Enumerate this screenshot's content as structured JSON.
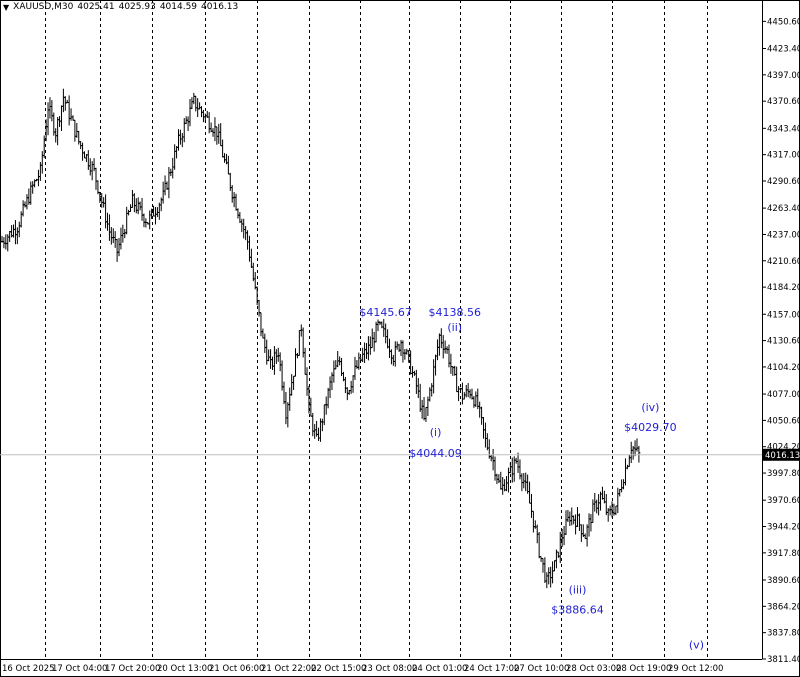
{
  "header": {
    "symbol": "XAUUSD,M30",
    "open": "4025.41",
    "high": "4025.93",
    "low": "4014.59",
    "close": "4016.13"
  },
  "price_label": "4016.13",
  "colors": {
    "background": "#ffffff",
    "candle": "#000000",
    "grid": "#000000",
    "annotation": "#1f1fd6",
    "price_line": "#c0c0c0"
  },
  "chart_data": {
    "type": "candlestick",
    "grid": "vertical dashed at date ticks",
    "ylim": [
      3811.4,
      4460.0
    ],
    "y_ticks": [
      "4450.60",
      "4423.40",
      "4397.00",
      "4370.60",
      "4343.40",
      "4317.00",
      "4290.60",
      "4263.40",
      "4237.00",
      "4210.60",
      "4184.20",
      "4157.00",
      "4130.60",
      "4104.20",
      "4077.00",
      "4050.60",
      "4024.20",
      "3997.80",
      "3970.60",
      "3944.20",
      "3917.80",
      "3890.60",
      "3864.20",
      "3837.80",
      "3811.40"
    ],
    "y_tick_values": [
      4450.6,
      4423.4,
      4397.0,
      4370.6,
      4343.4,
      4317.0,
      4290.6,
      4263.4,
      4237.0,
      4210.6,
      4184.2,
      4157.0,
      4130.6,
      4104.2,
      4077.0,
      4050.6,
      4024.2,
      3997.8,
      3970.6,
      3944.2,
      3917.8,
      3890.6,
      3864.2,
      3837.8,
      3811.4
    ],
    "x_ticks": [
      "16 Oct 2025",
      "17 Oct 04:00",
      "17 Oct 20:00",
      "20 Oct 13:00",
      "21 Oct 06:00",
      "21 Oct 22:00",
      "22 Oct 15:00",
      "23 Oct 08:00",
      "24 Oct 01:00",
      "24 Oct 17:00",
      "27 Oct 10:00",
      "28 Oct 03:00",
      "28 Oct 19:00",
      "29 Oct 12:00"
    ],
    "price_path": [
      {
        "t": 0,
        "p": 4230
      },
      {
        "t": 2,
        "p": 4245
      },
      {
        "t": 4,
        "p": 4285
      },
      {
        "t": 5,
        "p": 4300
      },
      {
        "t": 6,
        "p": 4365
      },
      {
        "t": 7,
        "p": 4340
      },
      {
        "t": 8,
        "p": 4375
      },
      {
        "t": 10,
        "p": 4330
      },
      {
        "t": 12,
        "p": 4300
      },
      {
        "t": 14,
        "p": 4240
      },
      {
        "t": 15,
        "p": 4220
      },
      {
        "t": 16,
        "p": 4245
      },
      {
        "t": 17,
        "p": 4270
      },
      {
        "t": 19,
        "p": 4250
      },
      {
        "t": 21,
        "p": 4275
      },
      {
        "t": 23,
        "p": 4330
      },
      {
        "t": 25,
        "p": 4370
      },
      {
        "t": 26,
        "p": 4360
      },
      {
        "t": 28,
        "p": 4340
      },
      {
        "t": 30,
        "p": 4280
      },
      {
        "t": 32,
        "p": 4230
      },
      {
        "t": 33,
        "p": 4180
      },
      {
        "t": 34,
        "p": 4130
      },
      {
        "t": 35,
        "p": 4105
      },
      {
        "t": 36,
        "p": 4120
      },
      {
        "t": 37,
        "p": 4060
      },
      {
        "t": 38,
        "p": 4100
      },
      {
        "t": 39,
        "p": 4145
      },
      {
        "t": 40,
        "p": 4060
      },
      {
        "t": 41,
        "p": 4030
      },
      {
        "t": 42,
        "p": 4060
      },
      {
        "t": 43,
        "p": 4095
      },
      {
        "t": 44,
        "p": 4110
      },
      {
        "t": 45,
        "p": 4080
      },
      {
        "t": 46,
        "p": 4100
      },
      {
        "t": 47,
        "p": 4115
      },
      {
        "t": 48,
        "p": 4125
      },
      {
        "t": 49,
        "p": 4145
      },
      {
        "t": 50,
        "p": 4135
      },
      {
        "t": 51,
        "p": 4115
      },
      {
        "t": 52,
        "p": 4130
      },
      {
        "t": 53,
        "p": 4110
      },
      {
        "t": 54,
        "p": 4085
      },
      {
        "t": 55,
        "p": 4050
      },
      {
        "t": 56,
        "p": 4090
      },
      {
        "t": 57,
        "p": 4135
      },
      {
        "t": 58,
        "p": 4120
      },
      {
        "t": 59,
        "p": 4090
      },
      {
        "t": 60,
        "p": 4075
      },
      {
        "t": 61,
        "p": 4080
      },
      {
        "t": 62,
        "p": 4065
      },
      {
        "t": 63,
        "p": 4030
      },
      {
        "t": 64,
        "p": 4010
      },
      {
        "t": 65,
        "p": 3980
      },
      {
        "t": 66,
        "p": 3995
      },
      {
        "t": 67,
        "p": 4010
      },
      {
        "t": 68,
        "p": 3990
      },
      {
        "t": 69,
        "p": 3960
      },
      {
        "t": 70,
        "p": 3920
      },
      {
        "t": 71,
        "p": 3888
      },
      {
        "t": 72,
        "p": 3905
      },
      {
        "t": 73,
        "p": 3935
      },
      {
        "t": 74,
        "p": 3955
      },
      {
        "t": 75,
        "p": 3950
      },
      {
        "t": 76,
        "p": 3935
      },
      {
        "t": 77,
        "p": 3960
      },
      {
        "t": 78,
        "p": 3975
      },
      {
        "t": 79,
        "p": 3955
      },
      {
        "t": 80,
        "p": 3965
      },
      {
        "t": 81,
        "p": 3995
      },
      {
        "t": 82,
        "p": 4025
      },
      {
        "t": 83,
        "p": 4016
      }
    ],
    "time_span": [
      0,
      83
    ],
    "annotations": [
      {
        "label": "$4145.67",
        "t": 50,
        "p": 4155,
        "anchor": "above"
      },
      {
        "label": "$4138.56",
        "t": 59,
        "p": 4155,
        "anchor": "above"
      },
      {
        "label": "(ii)",
        "t": 59,
        "p": 4140,
        "anchor": "above"
      },
      {
        "label": "(i)",
        "t": 56.5,
        "p": 4035,
        "anchor": "below"
      },
      {
        "label": "$4044.09",
        "t": 56.5,
        "p": 4014,
        "anchor": "below"
      },
      {
        "label": "(iv)",
        "t": 84.5,
        "p": 4060,
        "anchor": "above"
      },
      {
        "label": "$4029.70",
        "t": 84.5,
        "p": 4040,
        "anchor": "above"
      },
      {
        "label": "(iii)",
        "t": 75,
        "p": 3877,
        "anchor": "below"
      },
      {
        "label": "$3886.64",
        "t": 75,
        "p": 3857,
        "anchor": "below"
      },
      {
        "label": "(v)",
        "t": 90.5,
        "p": 3822,
        "anchor": "below"
      }
    ]
  }
}
